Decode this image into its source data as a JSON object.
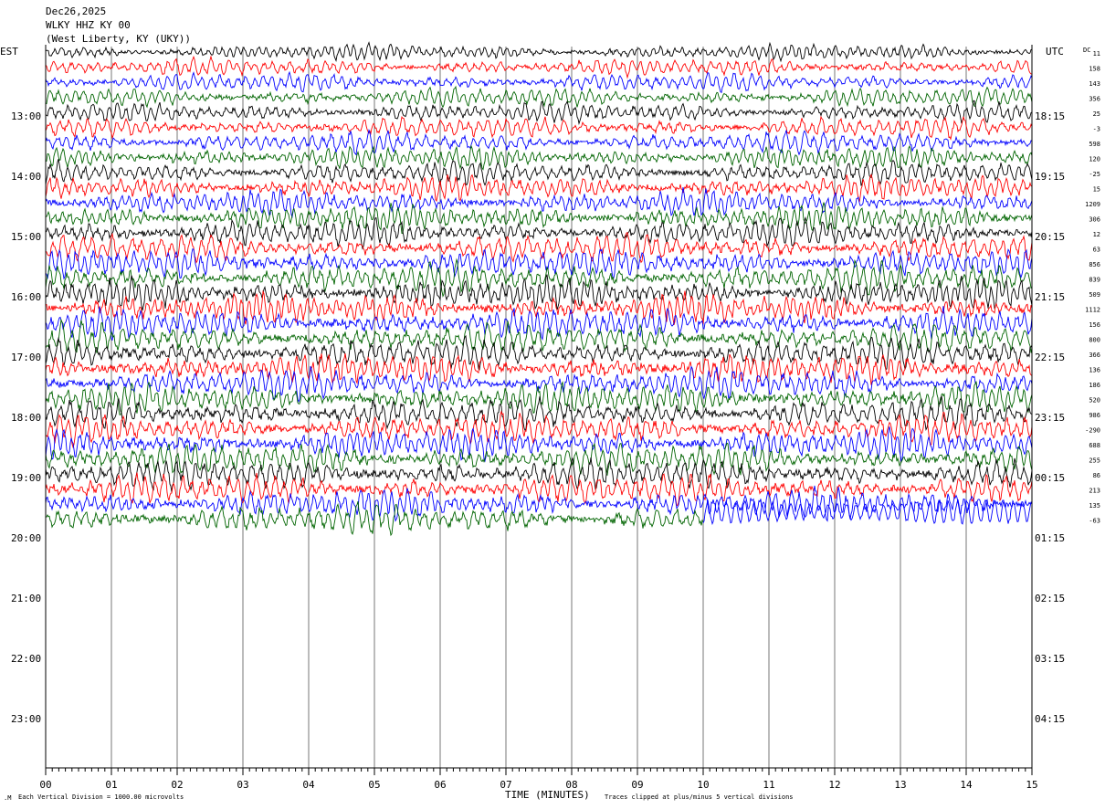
{
  "header": {
    "date": "Dec26,2025",
    "station": "WLKY HHZ KY 00",
    "location": "(West Liberty, KY (UKY))"
  },
  "left_axis_label": "EST",
  "right_axis_label": "UTC",
  "dc_label": "DC",
  "x_axis_title": "TIME (MINUTES)",
  "footer_left": "Each Vertical Division = 1000.00 microvolts",
  "footer_right": "Traces clipped at plus/minus 5 vertical divisions",
  "chart_data": {
    "type": "line",
    "xlabel": "TIME (MINUTES)",
    "xlim": [
      0,
      15
    ],
    "x_ticks": [
      "00",
      "01",
      "02",
      "03",
      "04",
      "05",
      "06",
      "07",
      "08",
      "09",
      "10",
      "11",
      "12",
      "13",
      "14",
      "15"
    ],
    "est_hours": [
      "13:00",
      "14:00",
      "15:00",
      "16:00",
      "17:00",
      "18:00",
      "19:00",
      "20:00",
      "21:00",
      "22:00",
      "23:00"
    ],
    "utc_hours": [
      "18:15",
      "19:15",
      "20:15",
      "21:15",
      "22:15",
      "23:15",
      "00:15",
      "01:15",
      "02:15",
      "03:15",
      "04:15"
    ],
    "trace_colors": [
      "#000000",
      "#ff0000",
      "#0000ff",
      "#006400"
    ],
    "dc_offsets": [
      "11",
      "158",
      "143",
      "356",
      "25",
      "-3",
      "598",
      "120",
      "-25",
      "15",
      "1209",
      "306",
      "12",
      "63",
      "856",
      "839",
      "509",
      "1112",
      "156",
      "800",
      "366",
      "136",
      "186",
      "520",
      "986",
      "-290",
      "688",
      "255",
      "86",
      "213",
      "135",
      "-63"
    ],
    "partial_last_trace_minutes": 10,
    "clip_divisions": 5
  }
}
